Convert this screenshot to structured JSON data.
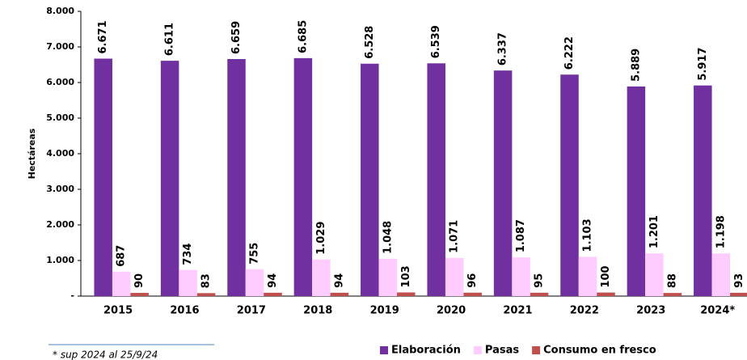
{
  "chart_data": {
    "type": "bar",
    "y_label": "Hectáreas",
    "categories": [
      "2015",
      "2016",
      "2017",
      "2018",
      "2019",
      "2020",
      "2021",
      "2022",
      "2023",
      "2024*"
    ],
    "series": [
      {
        "name": "Elaboración",
        "color": "#7030a0",
        "values": [
          6671,
          6611,
          6659,
          6685,
          6528,
          6539,
          6337,
          6222,
          5889,
          5917
        ],
        "value_labels": [
          "6.671",
          "6.611",
          "6.659",
          "6.685",
          "6.528",
          "6.539",
          "6.337",
          "6.222",
          "5.889",
          "5.917"
        ]
      },
      {
        "name": "Pasas",
        "color": "#ffccff",
        "values": [
          687,
          734,
          755,
          1029,
          1048,
          1071,
          1087,
          1103,
          1201,
          1198
        ],
        "value_labels": [
          "687",
          "734",
          "755",
          "1.029",
          "1.048",
          "1.071",
          "1.087",
          "1.103",
          "1.201",
          "1.198"
        ]
      },
      {
        "name": "Consumo en fresco",
        "color": "#c0504d",
        "values": [
          90,
          83,
          94,
          94,
          103,
          96,
          95,
          100,
          88,
          93
        ]
      }
    ],
    "ylim": [
      0,
      8000
    ],
    "yticks": [
      {
        "value": 0,
        "label": "-"
      },
      {
        "value": 1000,
        "label": "1.000"
      },
      {
        "value": 2000,
        "label": "2.000"
      },
      {
        "value": 3000,
        "label": "3.000"
      },
      {
        "value": 4000,
        "label": "4.000"
      },
      {
        "value": 5000,
        "label": "5.000"
      },
      {
        "value": 6000,
        "label": "6.000"
      },
      {
        "value": 7000,
        "label": "7.000"
      },
      {
        "value": 8000,
        "label": "8.000"
      }
    ],
    "legend": "bottom",
    "footnote": "* sup 2024 al 25/9/24"
  }
}
